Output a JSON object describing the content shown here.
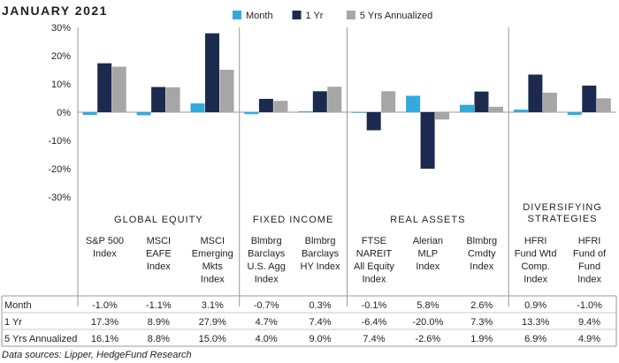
{
  "header": {
    "title": "JANUARY 2021"
  },
  "footer": {
    "source": "Data sources: Lipper, HedgeFund Research"
  },
  "chart_data": {
    "type": "bar",
    "ylim": [
      -30,
      30
    ],
    "yticks": [
      30,
      20,
      10,
      0,
      -10,
      -20,
      -30
    ],
    "ytick_labels": [
      "30%",
      "20%",
      "10%",
      "0%",
      "-10%",
      "-20%",
      "-30%"
    ],
    "grid": false,
    "legend_position": "top",
    "groups": [
      {
        "label": "GLOBAL EQUITY",
        "size": 3
      },
      {
        "label": "FIXED INCOME",
        "size": 2
      },
      {
        "label": "REAL ASSETS",
        "size": 3
      },
      {
        "label_lines": [
          "DIVERSIFYING",
          "STRATEGIES"
        ],
        "size": 2
      }
    ],
    "categories": [
      {
        "lines": [
          "S&P 500",
          "Index"
        ]
      },
      {
        "lines": [
          "MSCI",
          "EAFE",
          "Index"
        ]
      },
      {
        "lines": [
          "MSCI",
          "Emerging",
          "Mkts",
          "Index"
        ]
      },
      {
        "lines": [
          "Blmbrg",
          "Barclays",
          "U.S. Agg",
          "Index"
        ]
      },
      {
        "lines": [
          "Blmbrg",
          "Barclays",
          "HY Index"
        ]
      },
      {
        "lines": [
          "FTSE",
          "NAREIT",
          "All Equity",
          "Index"
        ]
      },
      {
        "lines": [
          "Alerian",
          "MLP",
          "Index"
        ]
      },
      {
        "lines": [
          "Blmbrg",
          "Cmdty",
          "Index"
        ]
      },
      {
        "lines": [
          "HFRI",
          "Fund Wtd",
          "Comp.",
          "Index"
        ]
      },
      {
        "lines": [
          "HFRI",
          "Fund of",
          "Fund",
          "Index"
        ]
      }
    ],
    "series": [
      {
        "name": "Month",
        "color": "#33a9dc",
        "values": [
          -1.0,
          -1.1,
          3.1,
          -0.7,
          0.3,
          -0.1,
          5.8,
          2.6,
          0.9,
          -1.0
        ],
        "labels": [
          "-1.0%",
          "-1.1%",
          "3.1%",
          "-0.7%",
          "0.3%",
          "-0.1%",
          "5.8%",
          "2.6%",
          "0.9%",
          "-1.0%"
        ]
      },
      {
        "name": "1 Yr",
        "color": "#1c2a4f",
        "values": [
          17.3,
          8.9,
          27.9,
          4.7,
          7.4,
          -6.4,
          -20.0,
          7.3,
          13.3,
          9.4
        ],
        "labels": [
          "17.3%",
          "8.9%",
          "27.9%",
          "4.7%",
          "7.4%",
          "-6.4%",
          "-20.0%",
          "7.3%",
          "13.3%",
          "9.4%"
        ]
      },
      {
        "name": "5 Yrs Annualized",
        "color": "#a6a6a6",
        "values": [
          16.1,
          8.8,
          15.0,
          4.0,
          9.0,
          7.4,
          -2.6,
          1.9,
          6.9,
          4.9
        ],
        "labels": [
          "16.1%",
          "8.8%",
          "15.0%",
          "4.0%",
          "9.0%",
          "7.4%",
          "-2.6%",
          "1.9%",
          "6.9%",
          "4.9%"
        ]
      }
    ]
  }
}
